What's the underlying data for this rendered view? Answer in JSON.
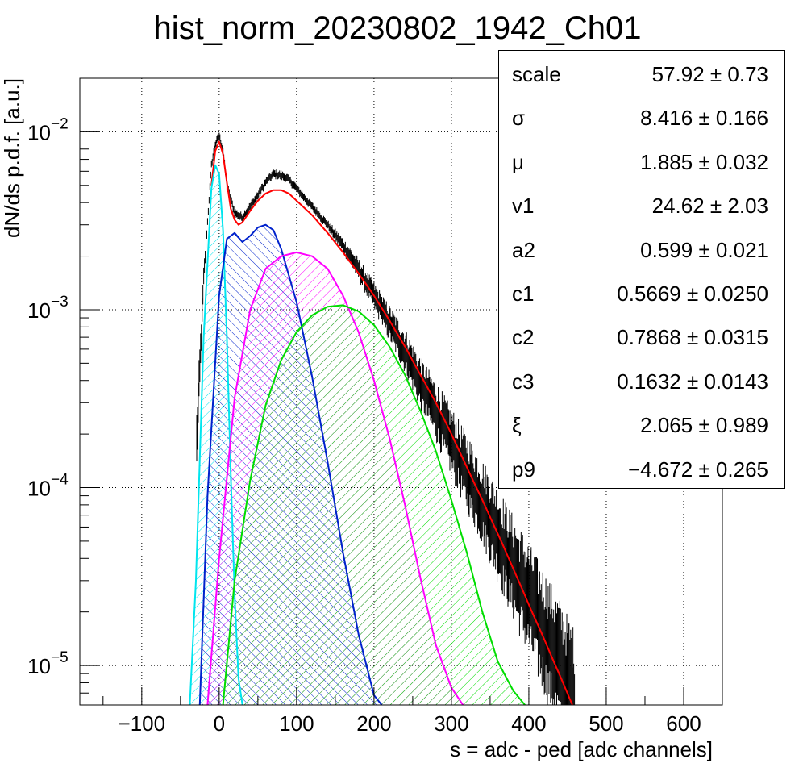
{
  "chart_data": {
    "type": "histogram",
    "title": "hist_norm_20230802_1942_Ch01",
    "xlabel": "s = adc - ped [adc channels]",
    "ylabel": "dN/ds p.d.f. [a.u.]",
    "x_scale": "linear",
    "y_scale": "log",
    "xlim": [
      -180,
      650
    ],
    "ylim": [
      6e-06,
      0.02
    ],
    "grid": true,
    "x_ticks": [
      -100,
      0,
      100,
      200,
      300,
      400,
      500,
      600
    ],
    "x_tick_labels": [
      "−100",
      "0",
      "100",
      "200",
      "300",
      "400",
      "500",
      "600"
    ],
    "y_ticks": [
      1e-05,
      0.0001,
      0.001,
      0.01
    ],
    "y_tick_labels": [
      {
        "base": "10",
        "exp": "−5"
      },
      {
        "base": "10",
        "exp": "−4"
      },
      {
        "base": "10",
        "exp": "−3"
      },
      {
        "base": "10",
        "exp": "−2"
      }
    ],
    "data_histogram": {
      "color": "#000000",
      "x": [
        -30,
        -20,
        -10,
        -5,
        0,
        5,
        10,
        20,
        30,
        40,
        50,
        60,
        70,
        80,
        90,
        100,
        120,
        140,
        160,
        180,
        200,
        220,
        240,
        260,
        280,
        300,
        320,
        340,
        360,
        380,
        400,
        420,
        440,
        460
      ],
      "y": [
        0.00015,
        0.0015,
        0.0065,
        0.0085,
        0.0095,
        0.0078,
        0.005,
        0.0035,
        0.0033,
        0.0038,
        0.0044,
        0.0052,
        0.0058,
        0.0057,
        0.0054,
        0.0048,
        0.0038,
        0.003,
        0.0023,
        0.0017,
        0.0012,
        0.00085,
        0.0006,
        0.0004,
        0.00028,
        0.00019,
        0.00013,
        9e-05,
        6e-05,
        4e-05,
        2.7e-05,
        1.8e-05,
        1.2e-05,
        8e-06
      ]
    },
    "series": [
      {
        "color": "#ff0000",
        "fill": "none",
        "x": [
          -10,
          -5,
          0,
          5,
          10,
          15,
          20,
          25,
          30,
          40,
          50,
          60,
          70,
          80,
          90,
          100,
          120,
          140,
          160,
          180,
          200,
          220,
          240,
          260,
          280,
          300,
          320,
          340,
          360,
          380,
          400,
          420,
          440,
          460
        ],
        "y": [
          0.005,
          0.0078,
          0.0088,
          0.0075,
          0.0052,
          0.0037,
          0.0032,
          0.003,
          0.0031,
          0.0036,
          0.0041,
          0.0045,
          0.0047,
          0.0047,
          0.0045,
          0.0041,
          0.0034,
          0.0027,
          0.0021,
          0.0016,
          0.0012,
          0.00087,
          0.00062,
          0.00043,
          0.0003,
          0.0002,
          0.00013,
          8.5e-05,
          5.5e-05,
          3.5e-05,
          2.2e-05,
          1.4e-05,
          8.8e-06,
          5.5e-06
        ]
      },
      {
        "color": "#00e5ee",
        "fill": "hatched",
        "x": [
          -38,
          -30,
          -20,
          -10,
          -5,
          0,
          5,
          10,
          15,
          20,
          25,
          30
        ],
        "y": [
          6e-06,
          3e-05,
          0.0007,
          0.0048,
          0.0065,
          0.0058,
          0.0028,
          0.0007,
          0.00012,
          2.5e-05,
          8.5e-06,
          6e-06
        ]
      },
      {
        "color": "#0022cc",
        "fill": "hatched",
        "x": [
          -25,
          -15,
          0,
          10,
          20,
          30,
          40,
          50,
          60,
          70,
          80,
          100,
          120,
          140,
          160,
          180,
          200,
          210
        ],
        "y": [
          6e-06,
          9e-05,
          0.0012,
          0.0025,
          0.0027,
          0.0024,
          0.0026,
          0.0029,
          0.003,
          0.0028,
          0.0022,
          0.0011,
          0.00042,
          0.00014,
          4.3e-05,
          1.5e-05,
          6.8e-06,
          6e-06
        ]
      },
      {
        "color": "#ff00ff",
        "fill": "hatched",
        "x": [
          -15,
          0,
          20,
          40,
          60,
          80,
          100,
          120,
          140,
          160,
          180,
          200,
          220,
          240,
          260,
          280,
          300,
          315
        ],
        "y": [
          6e-06,
          4e-05,
          0.00032,
          0.001,
          0.0017,
          0.002,
          0.0021,
          0.002,
          0.0017,
          0.0012,
          0.00075,
          0.0004,
          0.00019,
          8e-05,
          3.1e-05,
          1.3e-05,
          7.5e-06,
          6e-06
        ]
      },
      {
        "color": "#00dd00",
        "fill": "hatched",
        "x": [
          5,
          20,
          40,
          60,
          80,
          100,
          120,
          140,
          160,
          180,
          200,
          220,
          240,
          260,
          280,
          300,
          320,
          340,
          360,
          380,
          395
        ],
        "y": [
          6e-06,
          3e-05,
          0.00011,
          0.00029,
          0.00052,
          0.00075,
          0.00093,
          0.00104,
          0.00106,
          0.00098,
          0.00082,
          0.00062,
          0.00043,
          0.00027,
          0.00016,
          8.5e-05,
          4.3e-05,
          2e-05,
          1.05e-05,
          7.2e-06,
          6e-06
        ]
      }
    ]
  },
  "stats_box": {
    "rows": [
      {
        "name": "scale",
        "value": "57.92 ± 0.73"
      },
      {
        "name": "σ",
        "value": "8.416 ± 0.166"
      },
      {
        "name": "μ",
        "value": "1.885 ± 0.032"
      },
      {
        "name": "v1",
        "value": "24.62 ± 2.03"
      },
      {
        "name": "a2",
        "value": "0.599 ± 0.021"
      },
      {
        "name": "c1",
        "value": "0.5669 ± 0.0250"
      },
      {
        "name": "c2",
        "value": "0.7868 ± 0.0315"
      },
      {
        "name": "c3",
        "value": "0.1632 ± 0.0143"
      },
      {
        "name": "ξ",
        "value": "2.065 ± 0.989"
      },
      {
        "name": "p9",
        "value": "−4.672 ± 0.265"
      }
    ]
  }
}
